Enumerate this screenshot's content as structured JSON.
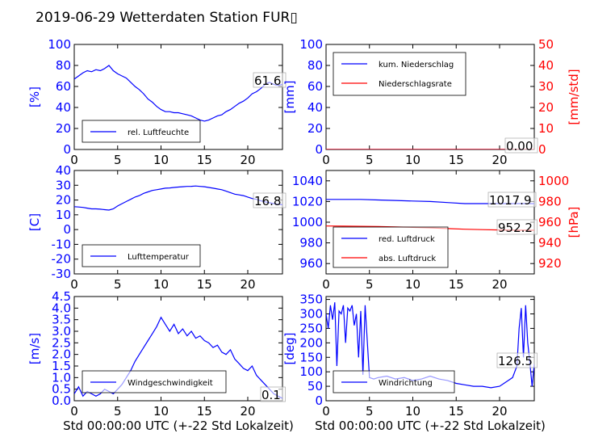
{
  "title": "2019-06-29 Wetterdaten Station FUR▯",
  "xlabel": "Std 00:00:00 UTC (+-22 Std Lokalzeit)",
  "chart_data": [
    {
      "id": "humidity",
      "type": "line",
      "ylabel": "[%]",
      "xlim": [
        0,
        24
      ],
      "ylim": [
        0,
        100
      ],
      "xticks": [
        0,
        5,
        10,
        15,
        20
      ],
      "yticks": [
        0,
        20,
        40,
        60,
        80,
        100
      ],
      "legend": {
        "position": "lower-left",
        "entries": [
          "rel. Luftfeuchte"
        ]
      },
      "annotation": "61.6",
      "series": [
        {
          "name": "rel. Luftfeuchte",
          "color": "#0000ff",
          "x": [
            0,
            0.5,
            1,
            1.5,
            2,
            2.5,
            3,
            3.5,
            4,
            4.5,
            5,
            5.5,
            6,
            6.5,
            7,
            7.5,
            8,
            8.5,
            9,
            9.5,
            10,
            10.5,
            11,
            11.5,
            12,
            12.5,
            13,
            13.5,
            14,
            14.5,
            15,
            15.5,
            16,
            16.5,
            17,
            17.5,
            18,
            18.5,
            19,
            19.5,
            20,
            20.5,
            21,
            21.5,
            22,
            22.5,
            23,
            23.5,
            24
          ],
          "y": [
            67,
            70,
            73,
            75,
            74,
            76,
            75,
            77,
            80,
            75,
            72,
            70,
            68,
            64,
            60,
            57,
            53,
            48,
            45,
            41,
            38,
            36,
            36,
            35,
            35,
            34,
            33,
            32,
            30,
            28,
            27,
            28,
            30,
            32,
            33,
            36,
            38,
            41,
            44,
            46,
            49,
            53,
            55,
            58,
            62,
            64,
            62,
            61,
            62
          ]
        }
      ]
    },
    {
      "id": "precipitation",
      "type": "line",
      "ylabel": "[mm]",
      "ylabel_right": "[mm/std]",
      "xlim": [
        0,
        24
      ],
      "ylim": [
        0,
        100
      ],
      "ylim_right": [
        0,
        50
      ],
      "xticks": [
        0,
        5,
        10,
        15,
        20
      ],
      "yticks": [
        0,
        20,
        40,
        60,
        80,
        100
      ],
      "yticks_right": [
        0,
        10,
        20,
        30,
        40,
        50
      ],
      "legend": {
        "position": "upper-left",
        "entries": [
          "kum. Niederschlag",
          "Niederschlagsrate"
        ]
      },
      "annotation": "0.00",
      "series": [
        {
          "name": "kum. Niederschlag",
          "color": "#0000ff",
          "axis": "left",
          "x": [
            0,
            24
          ],
          "y": [
            0,
            0
          ]
        },
        {
          "name": "Niederschlagsrate",
          "color": "#ff0000",
          "axis": "right",
          "x": [
            0,
            24
          ],
          "y": [
            0,
            0
          ]
        }
      ]
    },
    {
      "id": "temperature",
      "type": "line",
      "ylabel": "[C]",
      "xlim": [
        0,
        24
      ],
      "ylim": [
        -30,
        40
      ],
      "xticks": [
        0,
        5,
        10,
        15,
        20
      ],
      "yticks": [
        -30,
        -20,
        -10,
        0,
        10,
        20,
        30,
        40
      ],
      "legend": {
        "position": "lower-left",
        "entries": [
          "Lufttemperatur"
        ]
      },
      "annotation": "16.8",
      "series": [
        {
          "name": "Lufttemperatur",
          "color": "#0000ff",
          "x": [
            0,
            0.5,
            1,
            1.5,
            2,
            2.5,
            3,
            3.5,
            4,
            4.5,
            5,
            5.5,
            6,
            6.5,
            7,
            7.5,
            8,
            8.5,
            9,
            9.5,
            10,
            10.5,
            11,
            11.5,
            12,
            12.5,
            13,
            13.5,
            14,
            14.5,
            15,
            15.5,
            16,
            16.5,
            17,
            17.5,
            18,
            18.5,
            19,
            19.5,
            20,
            20.5,
            21,
            21.5,
            22,
            22.5,
            23,
            23.5,
            24
          ],
          "y": [
            15.5,
            15.3,
            15,
            14.5,
            14,
            14,
            13.8,
            13.5,
            13.2,
            14,
            16,
            17.5,
            19,
            20.5,
            22,
            23,
            24.5,
            25.5,
            26.5,
            27,
            27.5,
            28,
            28.2,
            28.5,
            28.8,
            29,
            29.2,
            29.3,
            29.5,
            29.2,
            29,
            28.5,
            28,
            27.5,
            27,
            26,
            25,
            24,
            23.5,
            23,
            22,
            21,
            20.5,
            19.5,
            18.8,
            18.2,
            17.6,
            17.1,
            16.8
          ]
        }
      ]
    },
    {
      "id": "pressure",
      "type": "line",
      "ylabel_right": "[hPa]",
      "xlim": [
        0,
        24
      ],
      "ylim": [
        950,
        1050
      ],
      "ylim_right": [
        910,
        1010
      ],
      "xticks": [
        0,
        5,
        10,
        15,
        20
      ],
      "yticks": [
        960,
        980,
        1000,
        1020,
        1040
      ],
      "yticks_right": [
        920,
        940,
        960,
        980,
        1000
      ],
      "legend": {
        "position": "lower-left",
        "entries": [
          "red. Luftdruck",
          "abs. Luftdruck"
        ]
      },
      "annotations": [
        "1017.9",
        "952.2"
      ],
      "series": [
        {
          "name": "red. Luftdruck",
          "color": "#0000ff",
          "axis": "left",
          "x": [
            0,
            2,
            4,
            6,
            8,
            10,
            12,
            14,
            16,
            18,
            20,
            22,
            24
          ],
          "y": [
            1022,
            1022,
            1022,
            1021.5,
            1021,
            1020.5,
            1020,
            1019,
            1018,
            1018,
            1018,
            1018,
            1018
          ]
        },
        {
          "name": "abs. Luftdruck",
          "color": "#ff0000",
          "axis": "right",
          "x": [
            0,
            2,
            4,
            6,
            8,
            10,
            12,
            14,
            16,
            18,
            20,
            22,
            24
          ],
          "y": [
            956.3,
            956.2,
            956,
            955.8,
            955.5,
            955,
            954.5,
            953.8,
            953.2,
            952.8,
            952.5,
            952.3,
            952.2
          ]
        }
      ]
    },
    {
      "id": "windspeed",
      "type": "line",
      "ylabel": "[m/s]",
      "xlim": [
        0,
        24
      ],
      "ylim": [
        0,
        4.5
      ],
      "xticks": [
        0,
        5,
        10,
        15,
        20
      ],
      "yticks": [
        0,
        0.5,
        1,
        1.5,
        2,
        2.5,
        3,
        3.5,
        4,
        4.5
      ],
      "legend": {
        "position": "lower-left",
        "entries": [
          "Windgeschwindigkeit"
        ]
      },
      "annotation": "0.1",
      "series": [
        {
          "name": "Windgeschwindigkeit",
          "color": "#0000ff",
          "x": [
            0,
            0.5,
            1,
            1.5,
            2,
            2.5,
            3,
            3.5,
            4,
            4.5,
            5,
            5.5,
            6,
            6.5,
            7,
            7.5,
            8,
            8.5,
            9,
            9.5,
            10,
            10.5,
            11,
            11.5,
            12,
            12.5,
            13,
            13.5,
            14,
            14.5,
            15,
            15.5,
            16,
            16.5,
            17,
            17.5,
            18,
            18.5,
            19,
            19.5,
            20,
            20.5,
            21,
            21.5,
            22,
            22.5,
            23,
            23.5,
            24
          ],
          "y": [
            0.3,
            0.6,
            0.2,
            0.4,
            0.3,
            0.2,
            0.3,
            0.5,
            0.4,
            0.3,
            0.5,
            0.7,
            1.0,
            1.3,
            1.7,
            2.0,
            2.3,
            2.6,
            2.9,
            3.2,
            3.6,
            3.3,
            3.0,
            3.3,
            2.9,
            3.1,
            2.8,
            3.0,
            2.7,
            2.8,
            2.6,
            2.5,
            2.3,
            2.4,
            2.1,
            2.0,
            2.2,
            1.8,
            1.6,
            1.4,
            1.3,
            1.5,
            1.1,
            0.9,
            0.7,
            0.5,
            0.3,
            0.2,
            0.1
          ]
        }
      ]
    },
    {
      "id": "winddirection",
      "type": "line",
      "ylabel": "[deg]",
      "xlim": [
        0,
        24
      ],
      "ylim": [
        0,
        360
      ],
      "xticks": [
        0,
        5,
        10,
        15,
        20
      ],
      "yticks": [
        0,
        50,
        100,
        150,
        200,
        250,
        300,
        350
      ],
      "legend": {
        "position": "lower-left",
        "entries": [
          "Windrichtung"
        ]
      },
      "annotation": "126.5",
      "series": [
        {
          "name": "Windrichtung",
          "color": "#0000ff",
          "x": [
            0,
            0.25,
            0.5,
            0.75,
            1,
            1.25,
            1.5,
            1.75,
            2,
            2.25,
            2.5,
            2.75,
            3,
            3.25,
            3.5,
            3.75,
            4,
            4.25,
            4.5,
            5,
            5.5,
            6,
            7,
            8,
            9,
            10,
            11,
            12,
            13,
            14,
            15,
            16,
            17,
            18,
            19,
            20,
            20.5,
            21,
            21.5,
            22,
            22.25,
            22.5,
            22.75,
            23,
            23.25,
            23.5,
            23.75,
            24
          ],
          "y": [
            300,
            250,
            330,
            280,
            340,
            120,
            310,
            300,
            330,
            200,
            320,
            310,
            330,
            260,
            300,
            150,
            310,
            90,
            330,
            80,
            75,
            80,
            85,
            75,
            80,
            70,
            75,
            85,
            75,
            70,
            60,
            55,
            50,
            50,
            45,
            50,
            60,
            70,
            80,
            120,
            250,
            320,
            150,
            330,
            200,
            130,
            50,
            126.5
          ]
        }
      ]
    }
  ]
}
